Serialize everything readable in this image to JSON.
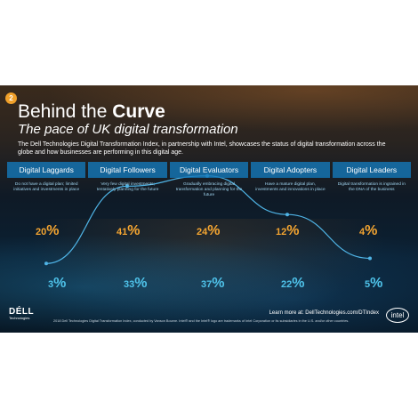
{
  "badge": "2",
  "title": {
    "lead": "Behind the ",
    "bold": "Curve"
  },
  "subtitle": "The pace of UK digital transformation",
  "intro": "The Dell Technologies Digital Transformation Index, in partnership with Intel, showcases the status of digital transformation across the globe and how businesses are performing in this digital age.",
  "categories": [
    {
      "label": "Digital Laggards",
      "desc": "Do not have a digital plan; limited initiatives and investments in place",
      "global_pct": "20",
      "uk_pct": "3"
    },
    {
      "label": "Digital Followers",
      "desc": "Very few digital investments; tentatively planning for the future",
      "global_pct": "41",
      "uk_pct": "33"
    },
    {
      "label": "Digital Evaluators",
      "desc": "Gradually embracing digital transformation and planning for the future",
      "global_pct": "24",
      "uk_pct": "37"
    },
    {
      "label": "Digital Adopters",
      "desc": "Have a mature digital plan, investments and innovations in place",
      "global_pct": "12",
      "uk_pct": "22"
    },
    {
      "label": "Digital Leaders",
      "desc": "Digital transformation is ingrained in the DNA of the business",
      "global_pct": "4",
      "uk_pct": "5"
    }
  ],
  "pct_symbol": "%",
  "curve_levels": [
    0.03,
    0.33,
    0.37,
    0.22,
    0.05
  ],
  "colors": {
    "orange": "#f4a531",
    "blue": "#4fc3ea",
    "curve": "#4fb4e6",
    "bar": "#1478b9"
  },
  "learn_more": "Learn more at: DellTechnologies.com/DTIndex",
  "footer": "2018 Dell Technologies Digital Transformation Index, conducted by Vanson Bourne.  Intel® and the Intel® logo are trademarks of Intel Corporation or its subsidiaries in the U.S. and/or other countries.",
  "dell_logo": "DÉLL",
  "dell_sub": "Technologies",
  "intel_logo": "intel"
}
